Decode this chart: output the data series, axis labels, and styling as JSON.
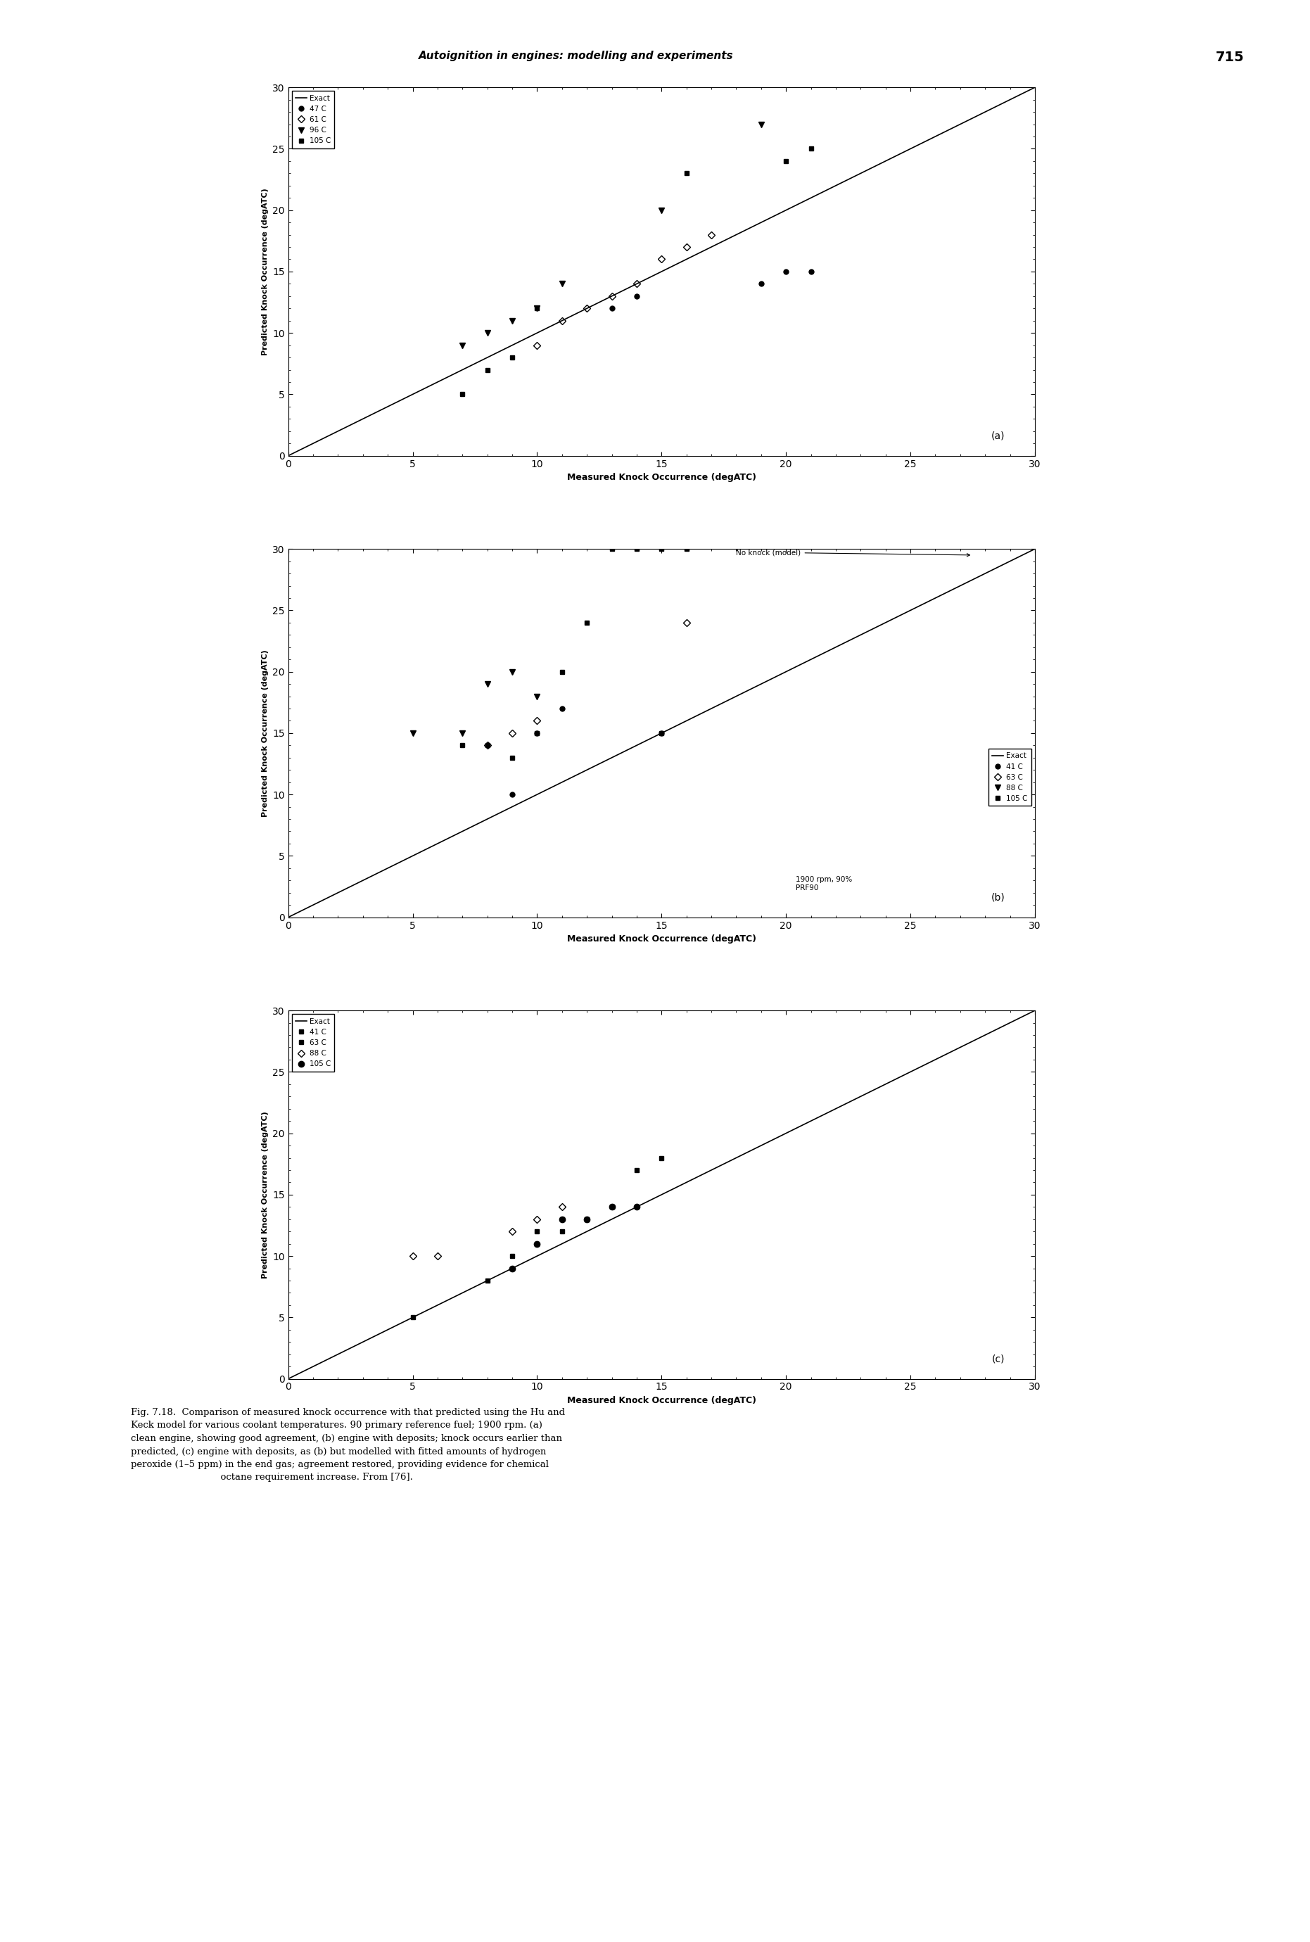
{
  "title_header": "Autoignition in engines: modelling and experiments",
  "page_number": "715",
  "xlabel": "Measured Knock Occurrence (degATC)",
  "ylabel": "Predicted Knock Occurrence (degATC)",
  "xlim": [
    0,
    30
  ],
  "ylim": [
    0,
    30
  ],
  "xticks": [
    0,
    5,
    10,
    15,
    20,
    25,
    30
  ],
  "yticks": [
    0,
    5,
    10,
    15,
    20,
    25,
    30
  ],
  "subplot_a": {
    "label": "(a)",
    "c47": {
      "x": [
        13,
        14,
        19,
        20,
        21
      ],
      "y": [
        12,
        13,
        14,
        15,
        15
      ]
    },
    "c61": {
      "x": [
        10,
        11,
        12,
        13,
        14,
        15,
        16,
        17
      ],
      "y": [
        9,
        11,
        12,
        13,
        14,
        16,
        17,
        18
      ]
    },
    "c96": {
      "x": [
        7,
        8,
        9,
        10,
        11,
        15,
        19
      ],
      "y": [
        9,
        10,
        11,
        12,
        14,
        20,
        27
      ]
    },
    "c105": {
      "x": [
        7,
        8,
        9,
        10,
        16,
        20,
        21
      ],
      "y": [
        5,
        7,
        8,
        12,
        23,
        24,
        25
      ]
    }
  },
  "subplot_b": {
    "label": "(b)",
    "c41": {
      "x": [
        9,
        10,
        11,
        15
      ],
      "y": [
        10,
        15,
        17,
        15
      ]
    },
    "c63": {
      "x": [
        8,
        9,
        10,
        16
      ],
      "y": [
        14,
        15,
        16,
        24
      ]
    },
    "c88": {
      "x": [
        5,
        7,
        8,
        9,
        10
      ],
      "y": [
        15,
        15,
        19,
        20,
        18
      ]
    },
    "c105": {
      "x": [
        7,
        8,
        9,
        10,
        11,
        12,
        15
      ],
      "y": [
        14,
        14,
        13,
        15,
        20,
        24,
        15
      ]
    },
    "c105_clipped": {
      "x": [
        13,
        14,
        15,
        16
      ],
      "y": [
        30,
        30,
        30,
        30
      ]
    },
    "note": "1900 rpm, 90%\nPRF90"
  },
  "subplot_c": {
    "label": "(c)",
    "c41": {
      "x": [
        8,
        9,
        10,
        11,
        12,
        13
      ],
      "y": [
        8,
        9,
        12,
        13,
        13,
        14
      ]
    },
    "c63": {
      "x": [
        5,
        9,
        10,
        11,
        12,
        13,
        14,
        15
      ],
      "y": [
        5,
        10,
        11,
        12,
        13,
        14,
        17,
        18
      ]
    },
    "c88": {
      "x": [
        5,
        6,
        9,
        10,
        11
      ],
      "y": [
        10,
        10,
        12,
        13,
        14
      ]
    },
    "c105": {
      "x": [
        9,
        10,
        11,
        12,
        13,
        14
      ],
      "y": [
        9,
        11,
        13,
        13,
        14,
        14
      ]
    }
  }
}
